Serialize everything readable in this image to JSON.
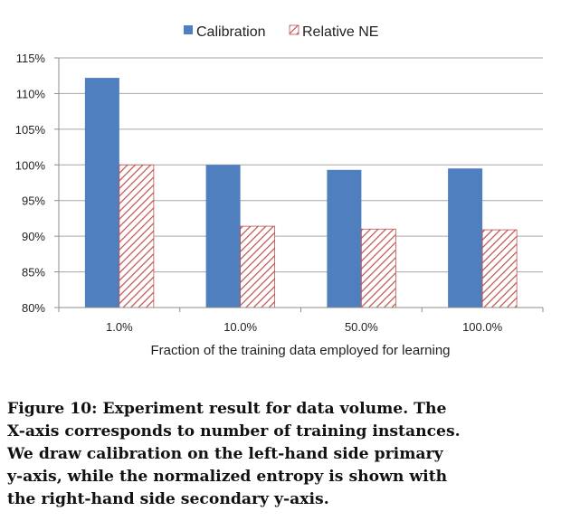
{
  "chart_data": {
    "type": "bar",
    "categories": [
      "1.0%",
      "10.0%",
      "50.0%",
      "100.0%"
    ],
    "series": [
      {
        "name": "Calibration",
        "values": [
          112.2,
          100.0,
          99.3,
          99.5
        ],
        "color": "#4f7fbf"
      },
      {
        "name": "Relative NE",
        "values": [
          100.0,
          91.4,
          91.0,
          90.9
        ],
        "color": "#c0504d",
        "pattern": "diagonal-hatch"
      }
    ],
    "yticks": [
      "80%",
      "85%",
      "90%",
      "95%",
      "100%",
      "105%",
      "110%",
      "115%"
    ],
    "ylim": [
      80,
      115
    ],
    "xlabel": "Fraction of the training data employed for learning",
    "ylabel": "",
    "grid": true,
    "legend": "top-center"
  },
  "caption": {
    "lines": [
      "Figure 10: Experiment result for data volume. The",
      "X-axis corresponds to number of training instances.",
      "We draw calibration on the left-hand side primary",
      "y-axis, while the normalized entropy is shown with",
      "the right-hand side secondary y-axis."
    ]
  }
}
